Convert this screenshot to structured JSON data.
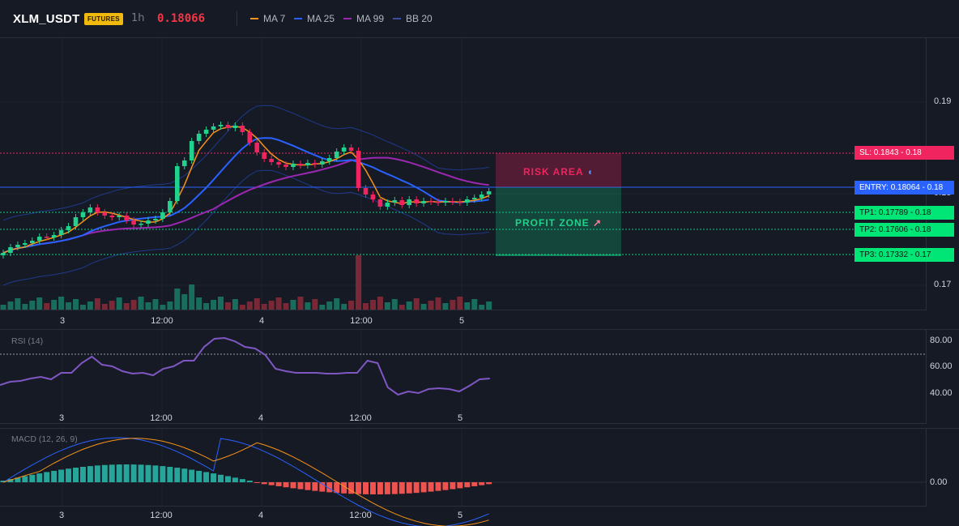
{
  "header": {
    "symbol": "XLM_USDT",
    "badge": "FUTURES",
    "timeframe": "1h",
    "last_price": "0.18066",
    "indicators": [
      {
        "label": "MA 7",
        "color": "#f7931a"
      },
      {
        "label": "MA 25",
        "color": "#2962ff"
      },
      {
        "label": "MA 99",
        "color": "#9c27b0"
      },
      {
        "label": "BB 20",
        "color": "#1e3a8a"
      }
    ]
  },
  "price_axis": [
    "0.19",
    "0.18",
    "0.17"
  ],
  "time_axis": [
    "3",
    "12:00",
    "4",
    "12:00",
    "5"
  ],
  "levels": {
    "sl": "SL: 0.1843 - 0.18",
    "entry": "ENTRY: 0.18064 - 0.18",
    "tp1": "TP1: 0.17789 - 0.18",
    "tp2": "TP2: 0.17606 - 0.18",
    "tp3": "TP3: 0.17332 - 0.17"
  },
  "zones": {
    "risk": "RISK AREA",
    "risk_icon": "shield-icon",
    "profit": "PROFIT ZONE",
    "profit_icon": "rocket-icon"
  },
  "rsi": {
    "title": "RSI (14)",
    "axis": [
      "80.00",
      "60.00",
      "40.00"
    ]
  },
  "macd": {
    "title": "MACD (12, 26, 9)",
    "axis": [
      "0.00"
    ]
  },
  "colors": {
    "up": "#22d18b",
    "down": "#f0245e",
    "entry": "#2962ff",
    "sl": "#f0245e",
    "tp": "#0ecb81",
    "rsi": "#7e57c2",
    "ma7": "#f7931a",
    "ma25": "#2962ff",
    "ma99": "#9c27b0",
    "bb": "#1e3a8a"
  }
}
